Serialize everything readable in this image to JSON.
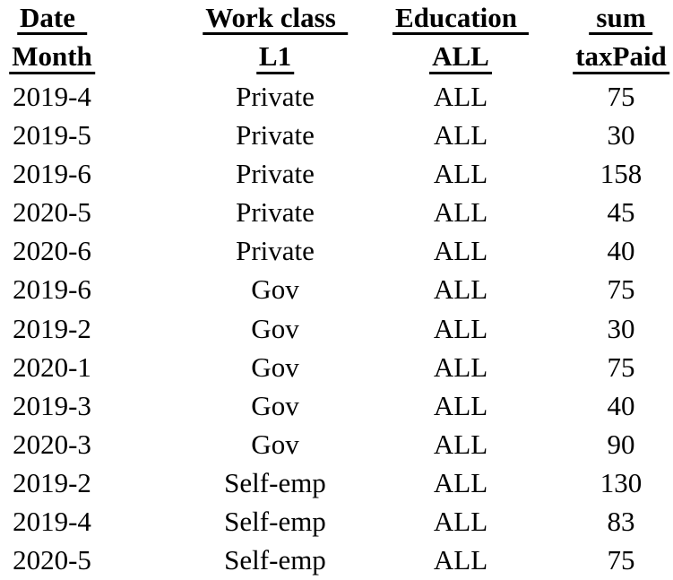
{
  "colors": {
    "text": "#000000",
    "background": "#ffffff"
  },
  "chart_data": {
    "type": "table",
    "columns": [
      {
        "line1": "Date",
        "line2": "Month"
      },
      {
        "line1": "Work class",
        "line2": "L1"
      },
      {
        "line1": "Education",
        "line2": "ALL"
      },
      {
        "line1": "sum",
        "line2": "taxPaid"
      }
    ],
    "rows": [
      {
        "cells": [
          "2019-4",
          "Private",
          "ALL",
          "75"
        ]
      },
      {
        "cells": [
          "2019-5",
          "Private",
          "ALL",
          "30"
        ]
      },
      {
        "cells": [
          "2019-6",
          "Private",
          "ALL",
          "158"
        ]
      },
      {
        "cells": [
          "2020-5",
          "Private",
          "ALL",
          "45"
        ]
      },
      {
        "cells": [
          "2020-6",
          "Private",
          "ALL",
          "40"
        ]
      },
      {
        "cells": [
          "2019-6",
          "Gov",
          "ALL",
          "75"
        ]
      },
      {
        "cells": [
          "2019-2",
          "Gov",
          "ALL",
          "30"
        ]
      },
      {
        "cells": [
          "2020-1",
          "Gov",
          "ALL",
          "75"
        ]
      },
      {
        "cells": [
          "2019-3",
          "Gov",
          "ALL",
          "40"
        ]
      },
      {
        "cells": [
          "2020-3",
          "Gov",
          "ALL",
          "90"
        ]
      },
      {
        "cells": [
          "2019-2",
          "Self-emp",
          "ALL",
          "130"
        ]
      },
      {
        "cells": [
          "2019-4",
          "Self-emp",
          "ALL",
          "83"
        ]
      },
      {
        "cells": [
          "2020-5",
          "Self-emp",
          "ALL",
          "75"
        ]
      }
    ]
  }
}
